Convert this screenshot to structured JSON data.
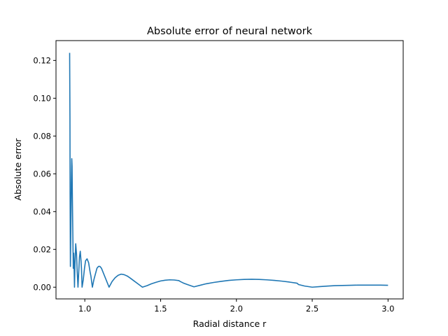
{
  "chart_data": {
    "type": "line",
    "title": "Absolute error of neural network",
    "xlabel": "Radial distance r",
    "ylabel": "Absolute error",
    "xlim": [
      0.81,
      3.1
    ],
    "ylim": [
      -0.0062,
      0.1305
    ],
    "xticks": [
      1.0,
      1.5,
      2.0,
      2.5,
      3.0
    ],
    "xtick_labels": [
      "1.0",
      "1.5",
      "2.0",
      "2.5",
      "3.0"
    ],
    "yticks": [
      0.0,
      0.02,
      0.04,
      0.06,
      0.08,
      0.1,
      0.12
    ],
    "ytick_labels": [
      "0.00",
      "0.02",
      "0.04",
      "0.06",
      "0.08",
      "0.10",
      "0.12"
    ],
    "grid": false,
    "legend": "none",
    "series": [
      {
        "color": "#1f77b4",
        "x": [
          0.9,
          0.902,
          0.903,
          0.905,
          0.908,
          0.911,
          0.914,
          0.916,
          0.918,
          0.921,
          0.924,
          0.927,
          0.93,
          0.932,
          0.935,
          0.94,
          0.945,
          0.95,
          0.955,
          0.96,
          0.965,
          0.97,
          0.975,
          0.978,
          0.982,
          0.99,
          0.998,
          1.005,
          1.015,
          1.025,
          1.035,
          1.04,
          1.05,
          1.06,
          1.07,
          1.08,
          1.09,
          1.1,
          1.11,
          1.12,
          1.13,
          1.14,
          1.16,
          1.18,
          1.2,
          1.22,
          1.24,
          1.26,
          1.28,
          1.3,
          1.32,
          1.35,
          1.38,
          1.41,
          1.44,
          1.47,
          1.5,
          1.53,
          1.56,
          1.59,
          1.62,
          1.63,
          1.65,
          1.68,
          1.72,
          1.76,
          1.8,
          1.85,
          1.9,
          1.95,
          2.0,
          2.05,
          2.1,
          2.15,
          2.2,
          2.25,
          2.3,
          2.35,
          2.4,
          2.41,
          2.45,
          2.5,
          2.55,
          2.6,
          2.65,
          2.7,
          2.75,
          2.8,
          2.85,
          2.9,
          2.95,
          3.0
        ],
        "y": [
          0.124,
          0.09,
          0.05,
          0.011,
          0.03,
          0.055,
          0.068,
          0.064,
          0.048,
          0.028,
          0.01,
          0.018,
          0.008,
          0.0,
          0.012,
          0.023,
          0.018,
          0.008,
          0.0,
          0.008,
          0.016,
          0.019,
          0.014,
          0.01,
          0.0,
          0.004,
          0.01,
          0.014,
          0.015,
          0.013,
          0.008,
          0.006,
          0.0,
          0.004,
          0.007,
          0.01,
          0.011,
          0.011,
          0.01,
          0.008,
          0.006,
          0.004,
          0.0,
          0.003,
          0.005,
          0.0063,
          0.0069,
          0.0066,
          0.0059,
          0.0048,
          0.0036,
          0.0018,
          0.0,
          0.0008,
          0.0018,
          0.0026,
          0.0033,
          0.0037,
          0.0039,
          0.0038,
          0.0035,
          0.003,
          0.0022,
          0.0013,
          0.0002,
          0.001,
          0.0018,
          0.0025,
          0.0031,
          0.0036,
          0.0039,
          0.0041,
          0.0042,
          0.0041,
          0.0039,
          0.0036,
          0.0032,
          0.0027,
          0.0021,
          0.0014,
          0.0006,
          0.0,
          0.0003,
          0.0006,
          0.0008,
          0.0009,
          0.001,
          0.0011,
          0.0011,
          0.0011,
          0.0011,
          0.001
        ]
      }
    ]
  }
}
